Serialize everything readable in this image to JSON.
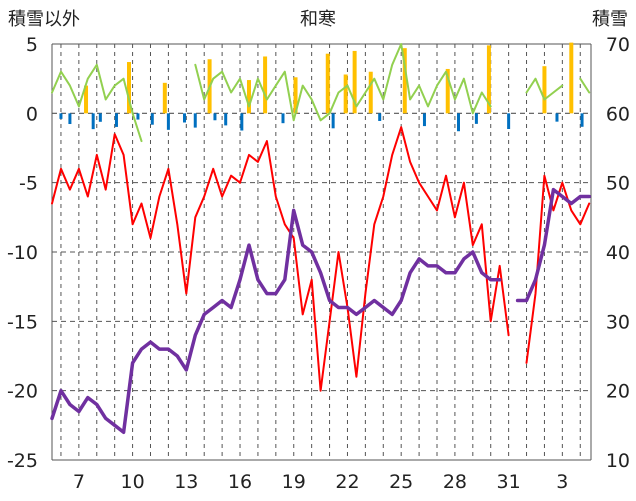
{
  "chart_data": {
    "type": "line",
    "title": "和寒",
    "left_axis_label": "積雪以外",
    "right_axis_label": "積雪",
    "left_ylim": [
      -25,
      5
    ],
    "left_yticks": [
      5,
      0,
      -5,
      -10,
      -15,
      -20,
      -25
    ],
    "right_ylim": [
      10,
      70
    ],
    "right_yticks": [
      70,
      60,
      50,
      40,
      30,
      20,
      10
    ],
    "x_tick_labels": [
      "7",
      "10",
      "13",
      "16",
      "19",
      "22",
      "25",
      "28",
      "31",
      "3"
    ],
    "grid": true,
    "colors": {
      "temperature": "#ff0000",
      "snow_depth": "#7030a0",
      "humidity_like": "#92d050",
      "positive_bars": "#ffc000",
      "negative_bars": "#0070c0",
      "grid": "#555555"
    },
    "series": [
      {
        "color_key": "temperature",
        "axis": "left",
        "x": [
          5.5,
          6.0,
          6.5,
          7.0,
          7.5,
          8.0,
          8.5,
          9.0,
          9.5,
          10.0,
          10.5,
          11.0,
          11.5,
          12.0,
          12.5,
          13.0,
          13.5,
          14.0,
          14.5,
          15.0,
          15.5,
          16.0,
          16.5,
          17.0,
          17.5,
          18.0,
          18.5,
          19.0,
          19.5,
          20.0,
          20.5,
          21.0,
          21.5,
          22.0,
          22.5,
          23.0,
          23.5,
          24.0,
          24.5,
          25.0,
          25.5,
          26.0,
          26.5,
          27.0,
          27.5,
          28.0,
          28.5,
          29.0,
          29.5,
          30.0,
          30.5,
          31.0,
          31.5,
          32.0,
          32.5,
          33.0,
          33.5,
          34.0,
          34.5,
          35.0,
          35.5
        ],
        "y": [
          -6.5,
          -4.0,
          -5.5,
          -4.0,
          -6.0,
          -3.0,
          -5.5,
          -1.5,
          -3.0,
          -8.0,
          -6.5,
          -9.0,
          -6.0,
          -4.0,
          -8.0,
          -13.0,
          -7.5,
          -6.0,
          -4.0,
          -6.0,
          -4.5,
          -5.0,
          -3.0,
          -3.5,
          -2.0,
          -6.0,
          -8.0,
          -9.0,
          -14.5,
          -12.0,
          -20.0,
          -15.0,
          -10.0,
          -14.0,
          -19.0,
          -13.0,
          -8.0,
          -6.0,
          -3.0,
          -1.0,
          -3.5,
          -5.0,
          -6.0,
          -7.0,
          -4.5,
          -7.5,
          -5.0,
          -9.5,
          -8.0,
          -15.0,
          -11.0,
          -16.0,
          null,
          -18.0,
          -13.0,
          -4.5,
          -7.0,
          -5.0,
          -7.0,
          -8.0,
          -6.5
        ]
      },
      {
        "color_key": "snow_depth",
        "axis": "right",
        "x": [
          5.5,
          6.0,
          6.5,
          7.0,
          7.5,
          8.0,
          8.5,
          9.0,
          9.5,
          10.0,
          10.5,
          11.0,
          11.5,
          12.0,
          12.5,
          13.0,
          13.5,
          14.0,
          14.5,
          15.0,
          15.5,
          16.0,
          16.5,
          17.0,
          17.5,
          18.0,
          18.5,
          19.0,
          19.5,
          20.0,
          20.5,
          21.0,
          21.5,
          22.0,
          22.5,
          23.0,
          23.5,
          24.0,
          24.5,
          25.0,
          25.5,
          26.0,
          26.5,
          27.0,
          27.5,
          28.0,
          28.5,
          29.0,
          29.5,
          30.0,
          30.5,
          31.0,
          31.5,
          32.0,
          32.5,
          33.0,
          33.5,
          34.0,
          34.5,
          35.0,
          35.5
        ],
        "y": [
          16,
          20,
          18,
          17,
          19,
          18,
          16,
          15,
          14,
          24,
          26,
          27,
          26,
          26,
          25,
          23,
          28,
          31,
          32,
          33,
          32,
          36,
          41,
          36,
          34,
          34,
          36,
          46,
          41,
          40,
          37,
          33,
          32,
          32,
          31,
          32,
          33,
          32,
          31,
          33,
          37,
          39,
          38,
          38,
          37,
          37,
          39,
          40,
          37,
          36,
          36,
          null,
          33,
          33,
          36,
          41,
          49,
          48,
          47,
          48,
          48
        ]
      },
      {
        "color_key": "humidity_like",
        "axis": "left",
        "x": [
          5.5,
          6.0,
          6.5,
          7.0,
          7.5,
          8.0,
          8.5,
          9.0,
          9.5,
          10.0,
          10.5,
          11.0,
          11.5,
          12.0,
          12.5,
          13.0,
          13.5,
          14.0,
          14.5,
          15.0,
          15.5,
          16.0,
          16.5,
          17.0,
          17.5,
          18.0,
          18.5,
          19.0,
          19.5,
          20.0,
          20.5,
          21.0,
          21.5,
          22.0,
          22.5,
          23.0,
          23.5,
          24.0,
          24.5,
          25.0,
          25.5,
          26.0,
          26.5,
          27.0,
          27.5,
          28.0,
          28.5,
          29.0,
          29.5,
          30.0,
          30.5,
          31.0,
          31.5,
          32.0,
          32.5,
          33.0,
          33.5,
          34.0,
          34.5,
          35.0,
          35.5
        ],
        "y": [
          1.5,
          3.0,
          2.0,
          0.5,
          2.5,
          3.5,
          1.0,
          2.0,
          2.5,
          0.0,
          -2.0,
          null,
          null,
          null,
          null,
          null,
          3.5,
          1.0,
          2.5,
          3.0,
          1.5,
          2.5,
          0.5,
          2.5,
          1.0,
          2.0,
          3.0,
          -0.5,
          2.0,
          1.0,
          -0.5,
          0.0,
          1.5,
          2.0,
          0.5,
          1.5,
          2.5,
          1.0,
          3.5,
          5.0,
          1.0,
          2.0,
          0.5,
          2.0,
          3.0,
          1.0,
          2.5,
          0.0,
          1.5,
          0.5,
          null,
          null,
          null,
          1.5,
          2.5,
          1.0,
          1.5,
          2.0,
          null,
          2.5,
          1.5
        ]
      }
    ],
    "bars_positive_days": [
      7.4,
      9.8,
      11.8,
      14.3,
      16.5,
      17.4,
      19.1,
      20.9,
      21.9,
      22.4,
      23.3,
      25.2,
      27.6,
      29.9,
      33.0,
      34.5
    ],
    "bars_negative_days": [
      6.0,
      6.5,
      7.8,
      8.2,
      9.1,
      10.3,
      11.1,
      12.0,
      12.9,
      13.5,
      14.6,
      15.2,
      16.1,
      18.4,
      21.2,
      23.8,
      26.3,
      28.2,
      29.2,
      31.0,
      33.7,
      35.1
    ]
  }
}
